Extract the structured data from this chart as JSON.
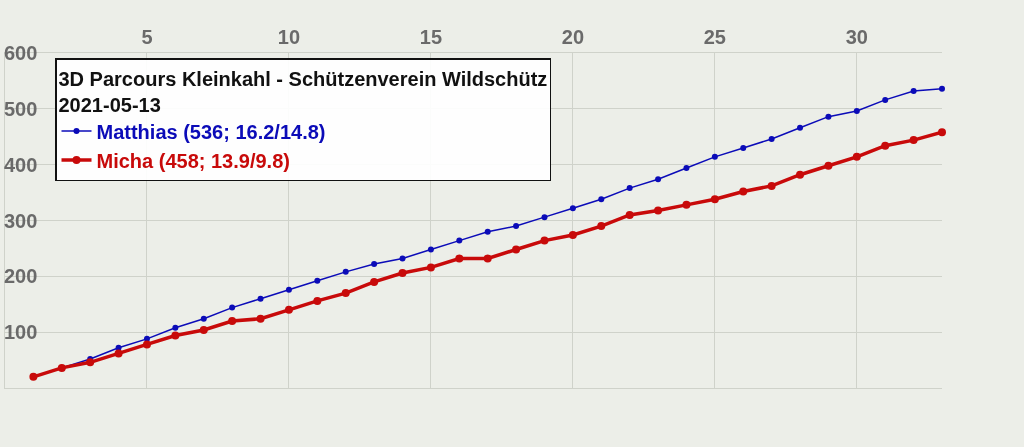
{
  "chart_data": {
    "type": "line",
    "title": "3D Parcours Kleinkahl - Schützenverein Wildschütz",
    "subtitle": "2021-05-13",
    "x": [
      1,
      2,
      3,
      4,
      5,
      6,
      7,
      8,
      9,
      10,
      11,
      12,
      13,
      14,
      15,
      16,
      17,
      18,
      19,
      20,
      21,
      22,
      23,
      24,
      25,
      26,
      27,
      28,
      29,
      30,
      31,
      32,
      33
    ],
    "series": [
      {
        "name": "Matthias (536; 16.2/14.8)",
        "color": "#0b0bb8",
        "values": [
          20,
          36,
          52,
          72,
          88,
          108,
          124,
          144,
          160,
          176,
          192,
          208,
          222,
          232,
          248,
          264,
          280,
          290,
          306,
          322,
          338,
          358,
          374,
          394,
          414,
          430,
          446,
          466,
          486,
          496,
          516,
          532,
          536
        ]
      },
      {
        "name": "Micha (458; 13.9/9.8)",
        "color": "#c80a0a",
        "values": [
          20,
          36,
          46,
          62,
          78,
          94,
          104,
          120,
          124,
          140,
          156,
          170,
          190,
          206,
          216,
          232,
          232,
          248,
          264,
          274,
          290,
          310,
          318,
          328,
          338,
          352,
          362,
          382,
          398,
          414,
          434,
          444,
          458
        ]
      }
    ],
    "xlim": [
      0,
      33
    ],
    "xticks": [
      5,
      10,
      15,
      20,
      25,
      30
    ],
    "ylim": [
      0,
      600
    ],
    "yticks": [
      {
        "value": 0,
        "label": null
      },
      100,
      200,
      300,
      400,
      500,
      600
    ],
    "grid": true,
    "legend": "top left",
    "marker": "circle",
    "line_style": "solid"
  }
}
